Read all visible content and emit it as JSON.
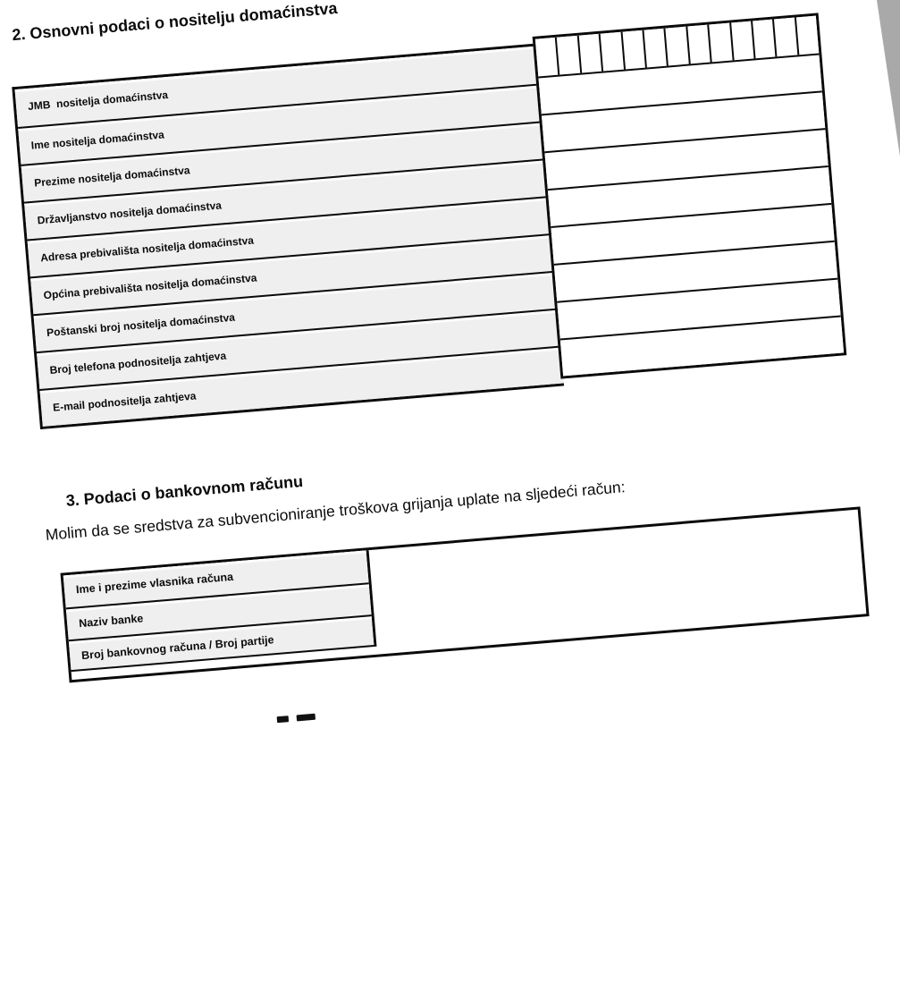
{
  "page": {
    "backing_color": "#a9a9a9",
    "paper_color": "#ffffff",
    "label_cell_color": "#efefef",
    "rotation_deg": -4.75
  },
  "section2": {
    "heading": "2. Osnovni podaci o nositelju domaćinstva",
    "comb": {
      "cells": 13
    },
    "rows": [
      {
        "label": "JMB  nositelja domaćinstva"
      },
      {
        "label": "Ime nositelja domaćinstva"
      },
      {
        "label": "Prezime nositelja domaćinstva"
      },
      {
        "label": "Državljanstvo nositelja domaćinstva"
      },
      {
        "label": "Adresa prebivališta nositelja domaćinstva"
      },
      {
        "label": "Općina prebivališta nositelja domaćinstva"
      },
      {
        "label": "Poštanski broj nositelja domaćinstva"
      },
      {
        "label": "Broj telefona podnositelja zahtjeva"
      },
      {
        "label": "E-mail podnositelja zahtjeva"
      }
    ]
  },
  "section3": {
    "heading": "3. Podaci o bankovnom računu",
    "intro": "Molim da se sredstva za subvencioniranje troškova grijanja uplate na sljedeći račun:",
    "rows": [
      {
        "label": "Ime i prezime vlasnika računa"
      },
      {
        "label": "Naziv banke"
      },
      {
        "label": "Broj bankovnog računa / Broj partije"
      }
    ]
  }
}
